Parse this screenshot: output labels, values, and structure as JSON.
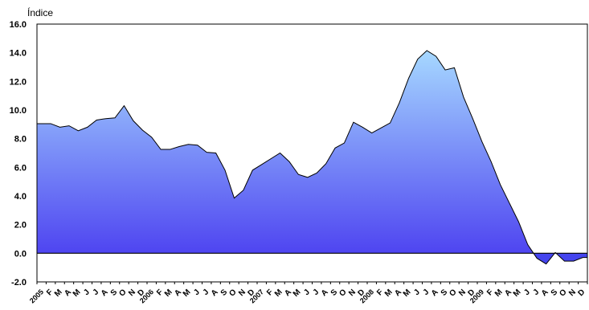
{
  "chart_data": {
    "type": "area",
    "ylabel": "Índice",
    "ylim": [
      -2,
      16
    ],
    "yticks": [
      -2,
      0,
      2,
      4,
      6,
      8,
      10,
      12,
      14,
      16
    ],
    "ytick_labels": [
      "-2.0",
      "0.0",
      "2.0",
      "4.0",
      "6.0",
      "8.0",
      "10.0",
      "12.0",
      "14.0",
      "16.0"
    ],
    "grid": false,
    "x": [
      "2005",
      "F",
      "M",
      "A",
      "M",
      "J",
      "J",
      "A",
      "S",
      "O",
      "N",
      "D",
      "2006",
      "F",
      "M",
      "A",
      "M",
      "J",
      "J",
      "A",
      "S",
      "O",
      "N",
      "D",
      "2007",
      "F",
      "M",
      "A",
      "M",
      "J",
      "J",
      "A",
      "S",
      "O",
      "N",
      "D",
      "2008",
      "F",
      "M",
      "A",
      "M",
      "J",
      "J",
      "A",
      "S",
      "O",
      "N",
      "D",
      "2009",
      "F",
      "M",
      "A",
      "M",
      "J",
      "J",
      "A",
      "S",
      "O",
      "N",
      "D"
    ],
    "values": [
      9.05,
      9.05,
      8.8,
      8.9,
      8.55,
      8.8,
      9.3,
      9.4,
      9.45,
      10.3,
      9.25,
      8.6,
      8.1,
      7.25,
      7.25,
      7.45,
      7.6,
      7.55,
      7.05,
      7.0,
      5.8,
      3.85,
      4.4,
      5.8,
      6.2,
      6.6,
      7.0,
      6.4,
      5.5,
      5.3,
      5.6,
      6.25,
      7.35,
      7.7,
      9.15,
      8.8,
      8.4,
      8.75,
      9.1,
      10.5,
      12.2,
      13.55,
      14.15,
      13.75,
      12.8,
      12.95,
      10.9,
      9.4,
      7.8,
      6.4,
      4.8,
      3.5,
      2.2,
      0.6,
      -0.35,
      -0.75,
      0.05,
      -0.55,
      -0.55,
      -0.3
    ],
    "colors": {
      "fill_top": "#a6d8ff",
      "fill_bottom": "#4a3df0",
      "negative_fill": "#4444ee",
      "line": "#000000",
      "zero_line": "#000000",
      "axis": "#000000"
    }
  }
}
